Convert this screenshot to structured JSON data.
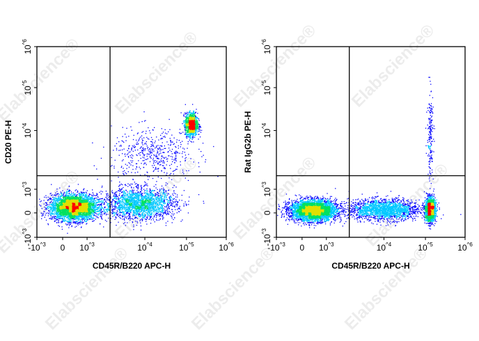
{
  "watermark": "Elabscience®",
  "chart_data": [
    {
      "type": "scatter",
      "subtype": "flow-cytometry-density-dot-plot",
      "xlabel": "CD45R/B220 APC-H",
      "ylabel": "CD20 PE-H",
      "x_scale": "biexponential",
      "y_scale": "biexponential",
      "xlim": [
        -1000,
        1000000
      ],
      "ylim": [
        -1000,
        1000000
      ],
      "x_ticks": [
        "-10^3",
        "0",
        "10^3",
        "10^4",
        "10^5",
        "10^6"
      ],
      "y_ticks": [
        "-10^3",
        "0",
        "10^3",
        "10^4",
        "10^5",
        "10^6"
      ],
      "quadrant_gate": {
        "x": 2500,
        "y": 1700
      },
      "grid": false,
      "density_colors": [
        "#0000ff",
        "#00c8ff",
        "#00e060",
        "#e0e000",
        "#ff0000"
      ],
      "populations": [
        {
          "x": 450,
          "y": 250,
          "events": 4200,
          "x_spread_decades": 0.45,
          "y_spread_decades": 0.25
        },
        {
          "x": 8000,
          "y": 400,
          "events": 2200,
          "x_spread_decades": 0.7,
          "y_spread_decades": 0.3
        },
        {
          "x": 130000,
          "y": 14000,
          "events": 1400,
          "x_spread_decades": 0.12,
          "y_spread_decades": 0.22
        },
        {
          "x": 15000,
          "y": 4000,
          "events": 500,
          "x_spread_decades": 0.8,
          "y_spread_decades": 0.5
        }
      ]
    },
    {
      "type": "scatter",
      "subtype": "flow-cytometry-density-dot-plot",
      "xlabel": "CD45R/B220 APC-H",
      "ylabel": "Rat IgG2b PE-H",
      "x_scale": "biexponential",
      "y_scale": "biexponential",
      "xlim": [
        -1000,
        1000000
      ],
      "ylim": [
        -1000,
        1000000
      ],
      "x_ticks": [
        "-10^3",
        "0",
        "10^3",
        "10^4",
        "10^5",
        "10^6"
      ],
      "y_ticks": [
        "-10^3",
        "0",
        "10^3",
        "10^4",
        "10^5",
        "10^6"
      ],
      "quadrant_gate": {
        "x": 2500,
        "y": 1700
      },
      "grid": false,
      "density_colors": [
        "#0000ff",
        "#00c8ff",
        "#00e060",
        "#e0e000",
        "#ff0000"
      ],
      "populations": [
        {
          "x": 450,
          "y": 120,
          "events": 4200,
          "x_spread_decades": 0.45,
          "y_spread_decades": 0.2
        },
        {
          "x": 10000,
          "y": 150,
          "events": 2000,
          "x_spread_decades": 0.7,
          "y_spread_decades": 0.2
        },
        {
          "x": 130000,
          "y": 150,
          "events": 1800,
          "x_spread_decades": 0.1,
          "y_spread_decades": 0.22
        },
        {
          "x": 130000,
          "y": 8000,
          "events": 200,
          "x_spread_decades": 0.06,
          "y_spread_decades": 0.9
        }
      ]
    }
  ]
}
